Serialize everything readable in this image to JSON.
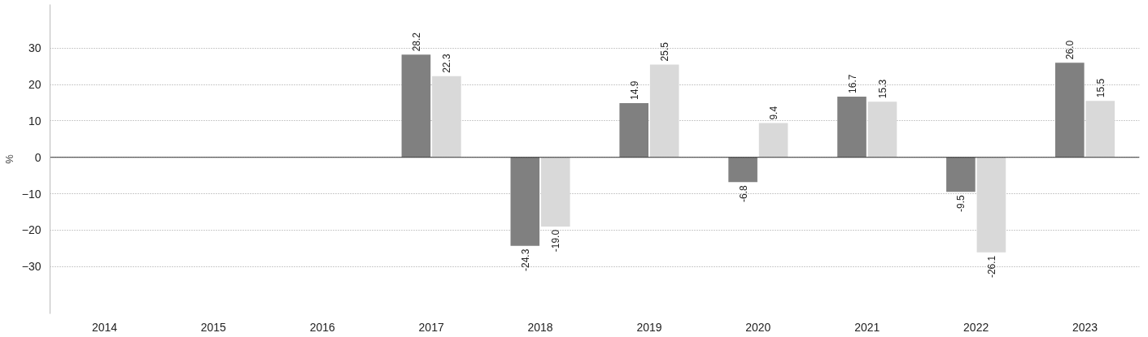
{
  "chart_data": {
    "type": "bar",
    "ylabel": "%",
    "categories": [
      "2014",
      "2015",
      "2016",
      "2017",
      "2018",
      "2019",
      "2020",
      "2021",
      "2022",
      "2023"
    ],
    "series": [
      {
        "color": "#808080",
        "values": [
          null,
          null,
          null,
          28.2,
          -24.3,
          14.9,
          -6.8,
          16.7,
          -9.5,
          26.0
        ],
        "value_labels": [
          null,
          null,
          null,
          "28.2",
          "-24.3",
          "14.9",
          "-6.8",
          "16.7",
          "-9.5",
          "26.0"
        ]
      },
      {
        "color": "#d9d9d9",
        "values": [
          null,
          null,
          null,
          22.3,
          -19.0,
          25.5,
          9.4,
          15.3,
          -26.1,
          15.5
        ],
        "value_labels": [
          null,
          null,
          null,
          "22.3",
          "-19.0",
          "25.5",
          "9.4",
          "15.3",
          "-26.1",
          "15.5"
        ]
      }
    ],
    "ylim": [
      -43,
      42
    ],
    "yticks": [
      -30,
      -20,
      -10,
      0,
      10,
      20,
      30
    ],
    "grid": "y"
  }
}
